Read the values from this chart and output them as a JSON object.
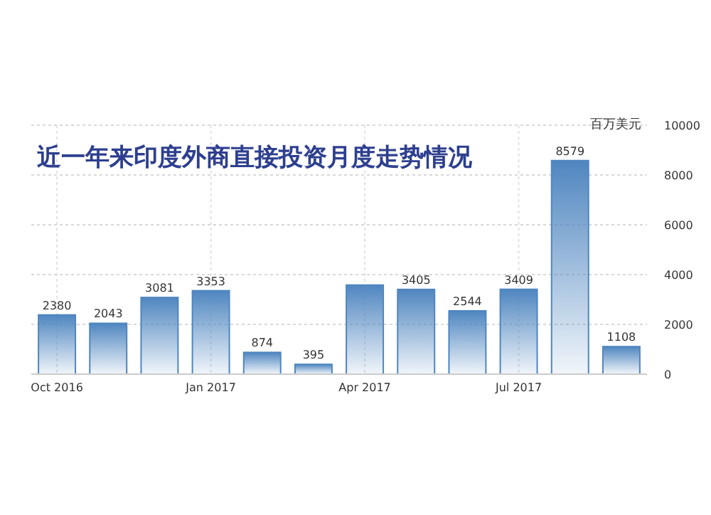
{
  "chart_data": {
    "type": "bar",
    "title": "近一年来印度外商直接投资月度走势情况",
    "ylabel": "百万美元",
    "categories": [
      "Oct 2016",
      null,
      null,
      "Jan 2017",
      null,
      null,
      "Apr 2017",
      null,
      null,
      "Jul 2017",
      null,
      null
    ],
    "values": [
      2380,
      2043,
      3081,
      3353,
      874,
      395,
      3580,
      3405,
      2544,
      3409,
      8579,
      1108
    ],
    "value_labels": [
      "2380",
      "2043",
      "3081",
      "3353",
      "874",
      "395",
      null,
      "3405",
      "2544",
      "3409",
      "8579",
      "1108"
    ],
    "color": "#4f86c0",
    "ylim": [
      0,
      10000
    ],
    "yticks": [
      0,
      2000,
      4000,
      6000,
      8000,
      10000
    ],
    "grid": true
  }
}
